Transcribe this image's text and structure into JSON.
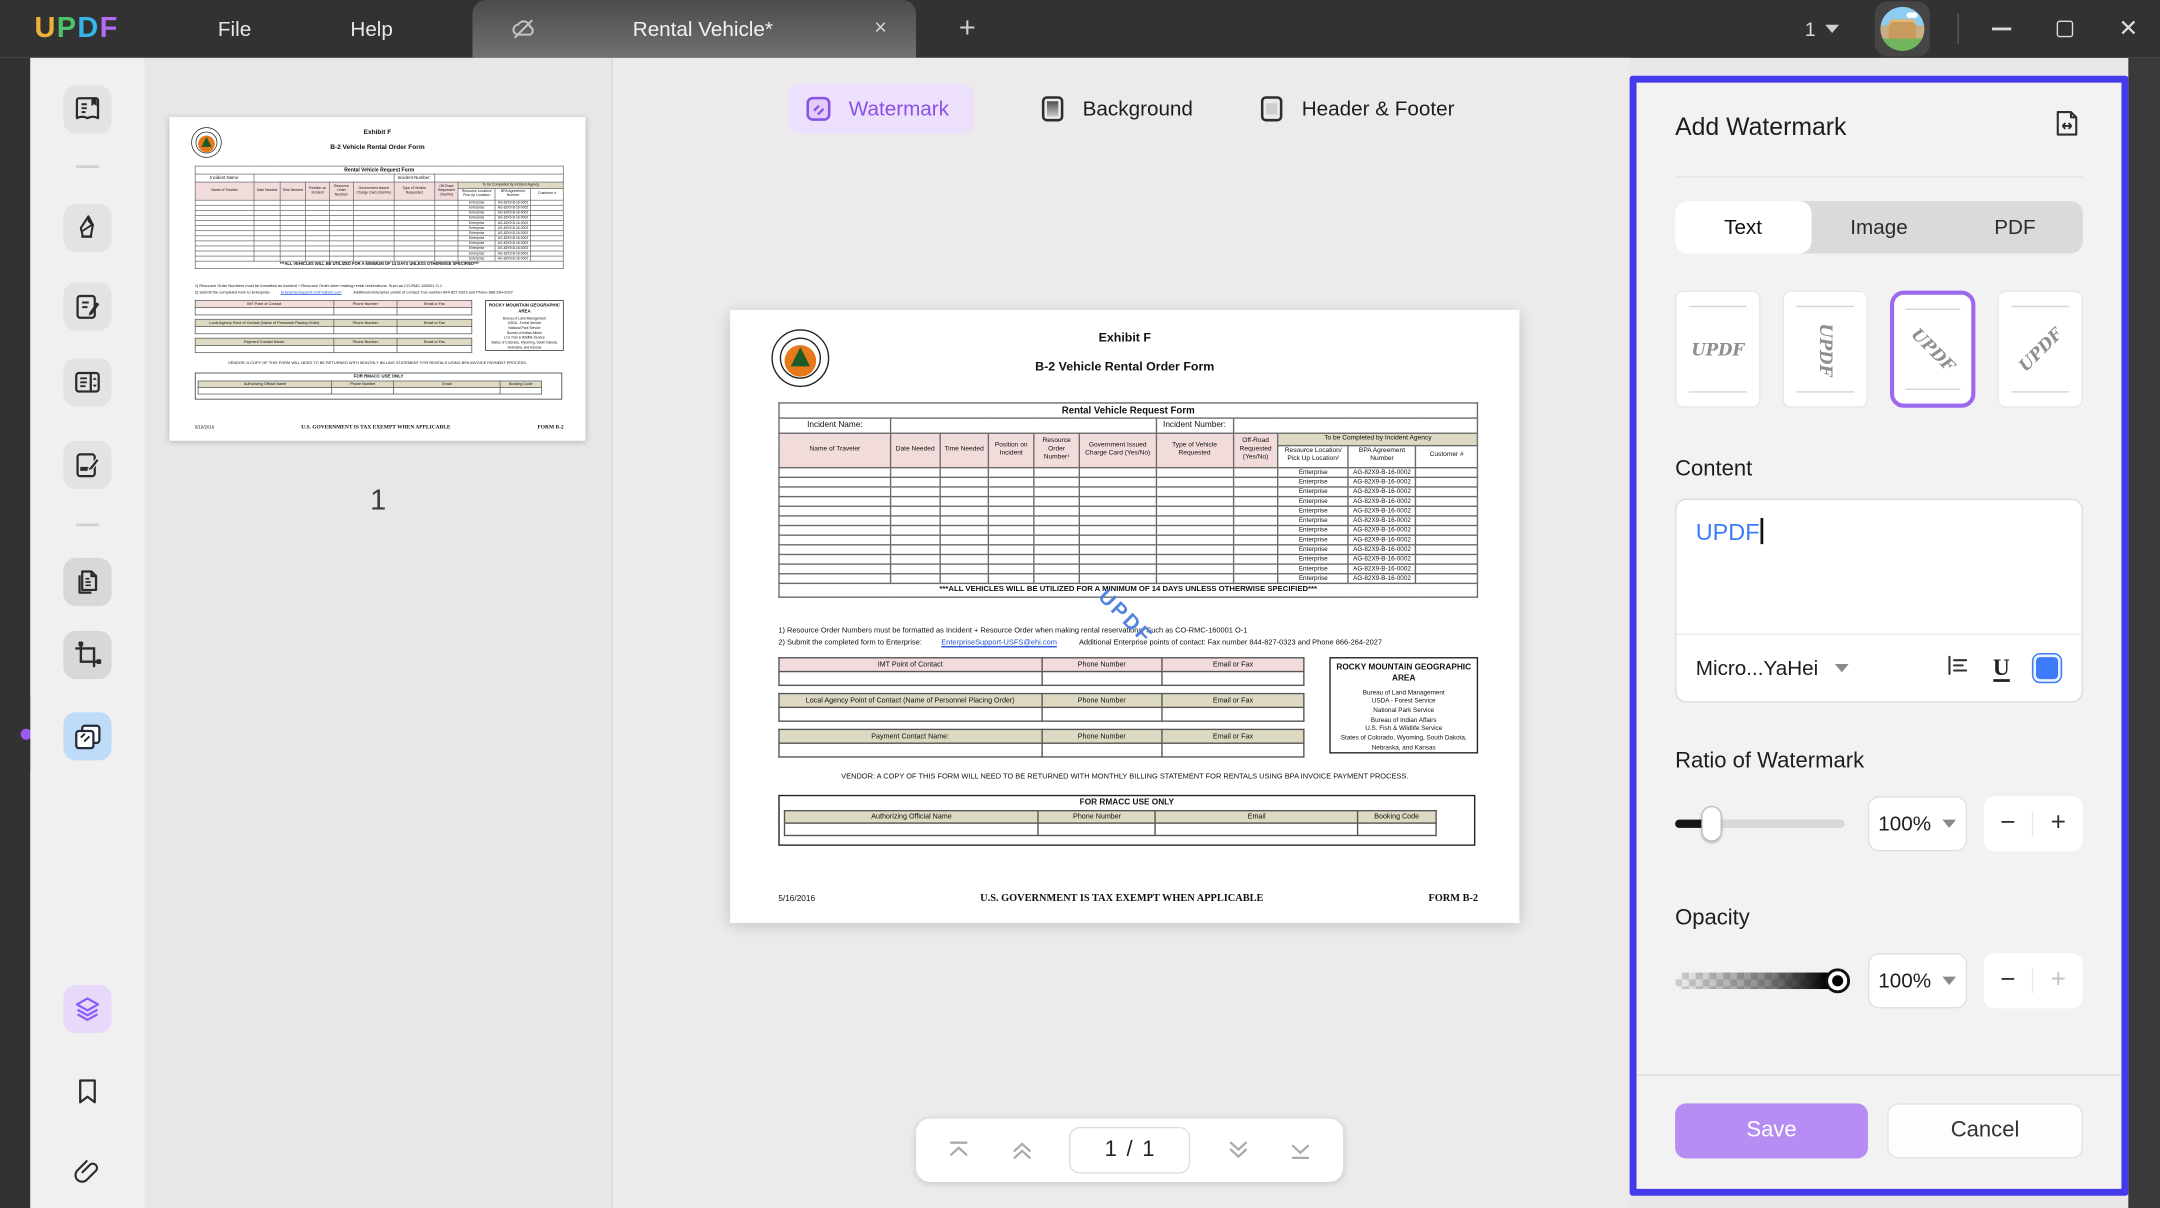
{
  "titlebar": {
    "logo_text": "UPDF",
    "logo_colors": [
      "#f0b13a",
      "#4cc368",
      "#35b5e8",
      "#b06cf2"
    ],
    "menus": {
      "file": "File",
      "help": "Help"
    },
    "tab": {
      "title": "Rental Vehicle*",
      "close": "×"
    },
    "new_tab": "+",
    "window_count": "1"
  },
  "toolbar": {
    "watermark_label": "Watermark",
    "background_label": "Background",
    "header_footer_label": "Header & Footer"
  },
  "thumbnails": {
    "page_number": "1"
  },
  "pagination": {
    "current": "1",
    "separator": "/",
    "total": "1"
  },
  "panel": {
    "title": "Add Watermark",
    "tabs": [
      "Text",
      "Image",
      "PDF"
    ],
    "presets": [
      {
        "label": "UPDF"
      },
      {
        "label": "UPDF"
      },
      {
        "label": "UPDF"
      },
      {
        "label": "UPDF"
      }
    ],
    "content_label": "Content",
    "content_value": "UPDF",
    "font_name": "Micro...YaHei",
    "underline_glyph": "U",
    "ratio_label": "Ratio of Watermark",
    "ratio_value": "100%",
    "opacity_label": "Opacity",
    "opacity_value": "100%",
    "minus": "−",
    "plus": "+",
    "save_label": "Save",
    "cancel_label": "Cancel",
    "colors": {
      "panel_border": "#4539ec",
      "accent_purple": "#8a51e8",
      "save_bg": "#b68df2",
      "content_blue": "#3e7bfa",
      "sidebar_active_blue": "#bedcf8"
    }
  },
  "document": {
    "exhibit": "Exhibit F",
    "title": "B-2 Vehicle Rental Order Form",
    "form_title": "Rental Vehicle Request Form",
    "incident_name_label": "Incident Name:",
    "incident_number_label": "Incident Number:",
    "columns": [
      "Name of Traveler",
      "Date Needed",
      "Time Needed",
      "Position on Incident",
      "Resource Order Number¹",
      "Government Issued Charge Card (Yes/No)",
      "Type of Vehicle Requested",
      "Off-Road Requested (Yes/No)"
    ],
    "agency_header": "To be Completed by Incident Agency",
    "agency_columns": [
      "Resource Location/ Pick Up Location²",
      "BPA Agreement Number",
      "Customer #"
    ],
    "row_count": 12,
    "row_location": "Enterprise",
    "row_bpa": "AG-82X9-B-16-0002",
    "all_vehicles_note": "***ALL VEHICLES WILL BE UTILIZED FOR A MINIMUM OF 14 DAYS UNLESS OTHERWISE SPECIFIED***",
    "footnote1": "1) Resource Order Numbers must be formatted as Incident + Resource Order when making rental reservations. Such as CO-RMC-160001 O-1",
    "footnote2_prefix": "2) Submit the completed form to Enterprise:",
    "footnote2_link": "EnterpriseSupport-USFS@ehi.com",
    "footnote2_suffix": "Additional Enterprise points of contact:  Fax number 844-827-0323 and Phone 866-264-2027",
    "contact_tables": [
      {
        "name": "IMT Point of Contact",
        "phone": "Phone Number",
        "email": "Email or Fax"
      },
      {
        "name": "Local Agency Point of Contact (Name of Personnel Placing Order)",
        "phone": "Phone Number",
        "email": "Email or Fax"
      },
      {
        "name": "Payment Contact Name:",
        "phone": "Phone Number",
        "email": "Email or Fax"
      }
    ],
    "geo_box": {
      "title": "ROCKY MOUNTAIN GEOGRAPHIC AREA",
      "lines": "Bureau of Land Management\nUSDA - Forest Service\nNational Park Service\nBureau of Indian Affairs\nU.S. Fish & Wildlife Service\nStates of Colorado, Wyoming, South Dakota, Nebraska, and Kansas"
    },
    "vendor_note": "VENDOR: A COPY OF THIS FORM WILL NEED TO BE RETURNED WITH MONTHLY BILLING STATEMENT FOR RENTALS USING BPA INVOICE PAYMENT PROCESS.",
    "rmacc_title": "FOR RMACC USE ONLY",
    "rmacc_columns": [
      "Authorizing Official Name",
      "Phone Number",
      "Email",
      "Booking Code"
    ],
    "footer_date": "5/16/2016",
    "footer_center": "U.S. GOVERNMENT IS TAX EXEMPT WHEN APPLICABLE",
    "footer_right": "FORM B-2"
  }
}
